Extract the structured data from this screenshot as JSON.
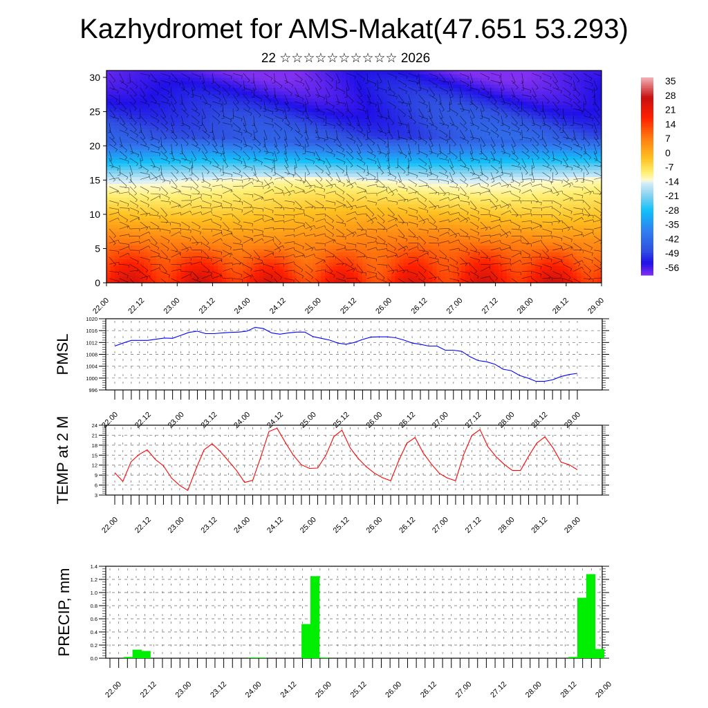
{
  "title": "Kazhydromet for AMS-Makat(47.651 53.293)",
  "subtitle": "22 ☆☆☆☆☆☆☆☆☆☆ 2026",
  "chart_data": [
    {
      "name": "temperature-cross-section",
      "type": "heatmap",
      "title": "",
      "xlabel": "",
      "ylabel": "",
      "x_tick_labels": [
        "22.00",
        "22.12",
        "23.00",
        "23.12",
        "24.00",
        "24.12",
        "25.00",
        "25.12",
        "26.00",
        "26.12",
        "27.00",
        "27.12",
        "28.00",
        "28.12",
        "29.00"
      ],
      "y_ticks": [
        0,
        5,
        10,
        15,
        20,
        25,
        30
      ],
      "ylim": [
        0,
        31
      ],
      "overlay": "wind barbs",
      "colorbar": {
        "labels": [
          "35",
          "28",
          "21",
          "14",
          "7",
          "0",
          "-7",
          "-14",
          "-21",
          "-28",
          "-35",
          "-42",
          "-49",
          "-56"
        ],
        "range": [
          -60,
          38
        ],
        "stops": [
          {
            "value": 38,
            "color": "#f2b3b8"
          },
          {
            "value": 28,
            "color": "#c81010"
          },
          {
            "value": 18,
            "color": "#ff2000"
          },
          {
            "value": 8,
            "color": "#ff7a10"
          },
          {
            "value": -2,
            "color": "#ffc020"
          },
          {
            "value": -9,
            "color": "#ffee70"
          },
          {
            "value": -13,
            "color": "#fffbd0"
          },
          {
            "value": -14,
            "color": "#d8eef8"
          },
          {
            "value": -21,
            "color": "#80d0f0"
          },
          {
            "value": -28,
            "color": "#10c0f8"
          },
          {
            "value": -38,
            "color": "#3080f0"
          },
          {
            "value": -48,
            "color": "#3050e0"
          },
          {
            "value": -54,
            "color": "#2010e8"
          },
          {
            "value": -60,
            "color": "#8030f0"
          }
        ]
      }
    },
    {
      "name": "pmsl",
      "type": "line",
      "ylabel": "PMSL",
      "ylim": [
        996,
        1020
      ],
      "y_ticks": [
        996,
        1000,
        1004,
        1008,
        1012,
        1016,
        1020
      ],
      "x_tick_labels": [
        "22.00",
        "22.12",
        "23.00",
        "23.12",
        "24.00",
        "24.12",
        "25.00",
        "25.12",
        "26.00",
        "26.12",
        "27.00",
        "27.12",
        "28.00",
        "28.12",
        "29.00"
      ],
      "line_color": "#0000ff",
      "values": [
        1010.8,
        1011.8,
        1012.7,
        1012.7,
        1012.7,
        1013.1,
        1013.5,
        1013.4,
        1014.4,
        1015.4,
        1015.8,
        1015.0,
        1015.0,
        1015.2,
        1015.4,
        1015.5,
        1015.8,
        1017.1,
        1016.7,
        1015.2,
        1014.8,
        1015.2,
        1015.5,
        1015.5,
        1014.0,
        1013.4,
        1012.8,
        1011.8,
        1011.4,
        1012.0,
        1013.0,
        1013.8,
        1013.9,
        1013.9,
        1013.6,
        1012.8,
        1011.8,
        1011.4,
        1010.8,
        1010.8,
        1009.4,
        1009.4,
        1009.0,
        1007.2,
        1005.9,
        1005.5,
        1004.7,
        1003.0,
        1002.5,
        1000.9,
        1000.0,
        998.9,
        998.9,
        999.4,
        1000.5,
        1001.2,
        1001.6
      ]
    },
    {
      "name": "temp-2m",
      "type": "line",
      "ylabel": "TEMP at 2 M",
      "ylim": [
        3,
        24
      ],
      "y_ticks": [
        3,
        6,
        9,
        12,
        15,
        18,
        21,
        24
      ],
      "x_tick_labels": [
        "22.00",
        "22.12",
        "23.00",
        "23.12",
        "24.00",
        "24.12",
        "25.00",
        "25.12",
        "26.00",
        "26.12",
        "27.00",
        "27.12",
        "28.00",
        "28.12",
        "29.00"
      ],
      "line_color": "#ff0000",
      "values": [
        9.7,
        7.1,
        13.0,
        15.2,
        16.6,
        13.7,
        11.8,
        8.1,
        5.9,
        4.4,
        10.8,
        16.6,
        18.4,
        16.1,
        13.3,
        10.4,
        6.8,
        7.4,
        14.5,
        22.1,
        23.1,
        18.9,
        15.0,
        12.1,
        11.0,
        11.1,
        14.9,
        20.6,
        22.5,
        17.2,
        14.0,
        11.5,
        9.6,
        8.2,
        7.3,
        13.4,
        18.6,
        20.3,
        15.7,
        12.4,
        9.5,
        8.1,
        7.3,
        15.2,
        20.9,
        22.7,
        17.5,
        14.5,
        12.2,
        10.4,
        10.4,
        14.7,
        18.6,
        20.5,
        17.2,
        12.9,
        12.1,
        10.6
      ]
    },
    {
      "name": "precipitation",
      "type": "bar",
      "ylabel": "PRECIP, mm",
      "ylim": [
        0,
        1.4
      ],
      "y_ticks": [
        "0.0",
        "0.2",
        "0.4",
        "0.6",
        "0.8",
        "1.0",
        "1.2",
        "1.4"
      ],
      "x_tick_labels": [
        "22.00",
        "22.12",
        "23.00",
        "23.12",
        "24.00",
        "24.12",
        "25.00",
        "25.12",
        "26.00",
        "26.12",
        "27.00",
        "27.12",
        "28.00",
        "28.12",
        "29.00"
      ],
      "bar_color": "#00ee00",
      "values": [
        0,
        0,
        0.02,
        0.13,
        0.11,
        0,
        0,
        0,
        0,
        0,
        0,
        0,
        0,
        0,
        0,
        0,
        0.01,
        0.01,
        0,
        0,
        0,
        0,
        0.52,
        1.25,
        0.01,
        0,
        0,
        0,
        0,
        0,
        0,
        0,
        0,
        0,
        0,
        0,
        0,
        0,
        0,
        0,
        0,
        0,
        0,
        0,
        0,
        0,
        0,
        0,
        0,
        0,
        0,
        0,
        0.02,
        0.92,
        1.28,
        0.14
      ]
    }
  ]
}
